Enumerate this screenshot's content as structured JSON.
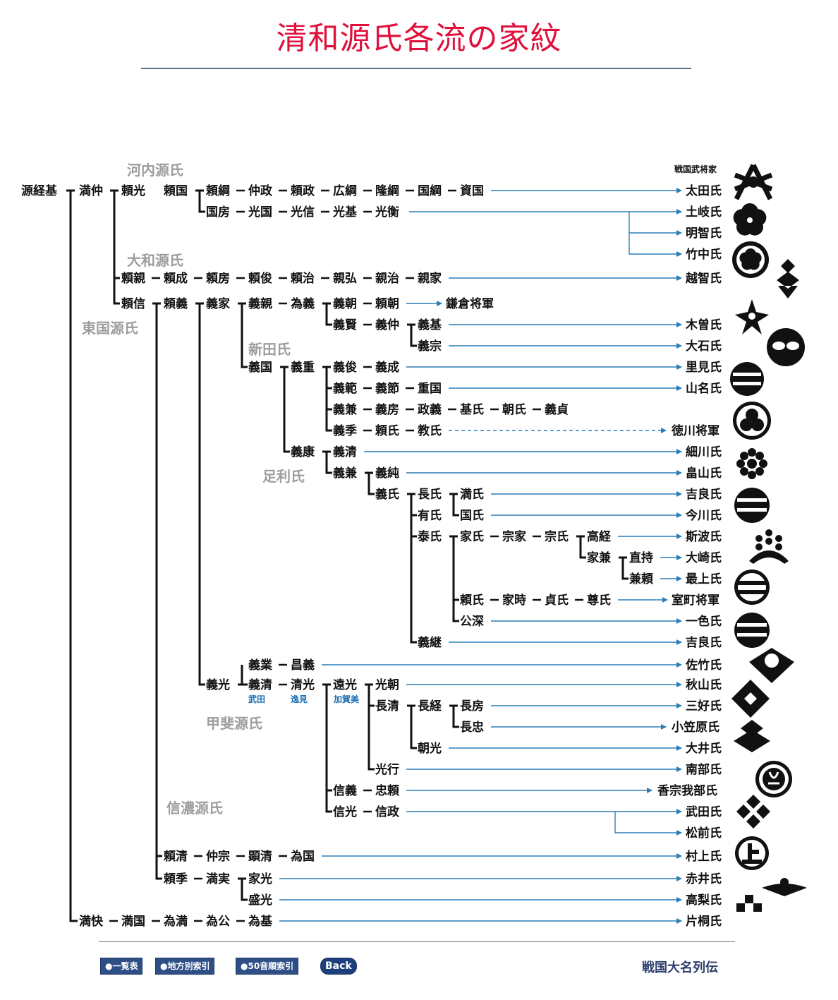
{
  "page": {
    "title": "清和源氏各流の家紋"
  },
  "header": {
    "daimyo_column": "戦国武将家"
  },
  "groups": {
    "kawachi": "河内源氏",
    "yamato": "大和源氏",
    "togoku": "東国源氏",
    "nitta": "新田氏",
    "ashikaga": "足利氏",
    "kai": "甲斐源氏",
    "shinano": "信濃源氏"
  },
  "subs": {
    "takeda": "武田",
    "henmi": "逸見",
    "kagami": "加賀美"
  },
  "names": {
    "mitsumoto": "源経基",
    "mitsunaka": "満仲",
    "yorimitsu": "頼光",
    "yorikuni": "頼国",
    "yoritsuna": "頼綱",
    "nakamasa": "仲政",
    "yorimasa": "頼政",
    "hirotsuna": "広綱",
    "takatsuna": "隆綱",
    "kunitsuna": "国綱",
    "suekuni": "資国",
    "kunifusa": "国房",
    "mitsukuni": "光国",
    "mitsunobu": "光信",
    "mitsumoto2": "光基",
    "mitsuhira": "光衡",
    "yorichika": "頼親",
    "yorinari": "頼成",
    "yorifusa": "頼房",
    "yoritoshi": "頼俊",
    "yoriharu": "頼治",
    "chikahiro": "親弘",
    "chikaharu": "親治",
    "chikaie": "親家",
    "yorinobu": "頼信",
    "yoriyoshi": "頼義",
    "yoshiie": "義家",
    "yoshichika": "義親",
    "tameyoshi": "為義",
    "yoshitomo": "義朝",
    "yoritomo": "頼朝",
    "yoshikata": "義賢",
    "yoshinaka": "義仲",
    "yoshimoto": "義基",
    "yoshimune": "義宗",
    "yoshikuni": "義国",
    "yoshishige": "義重",
    "yoshitoshi": "義俊",
    "yoshinari": "義成",
    "yoshinori": "義範",
    "yoshitoki": "義節",
    "shigekuni": "重国",
    "yoshikane": "義兼",
    "yoshifusa": "義房",
    "masayoshi": "政義",
    "motouji": "基氏",
    "tomouji": "朝氏",
    "yoshisada": "義貞",
    "yoshisue": "義季",
    "yoriuji": "頼氏",
    "noriuji": "教氏",
    "yoshiyasu": "義康",
    "yoshikiyo_a": "義清",
    "yoshikane2": "義兼",
    "yoshizumi": "義純",
    "yoshiuji": "義氏",
    "osauji": "長氏",
    "mitsuuji": "満氏",
    "ariuji": "有氏",
    "kuniuji": "国氏",
    "yasuuji": "泰氏",
    "ieuji": "家氏",
    "muneie": "宗家",
    "muneuji": "宗氏",
    "takatsune": "高経",
    "iekane": "家兼",
    "tadamochi": "直持",
    "kaneyori": "兼頼",
    "yoriuji2": "頼氏",
    "ietoki": "家時",
    "sadauji": "貞氏",
    "takauji": "尊氏",
    "kofuka": "公深",
    "yoshitsugu": "義継",
    "yoshinari2": "義業",
    "masayoshi2": "昌義",
    "yoshimitsu": "義光",
    "yoshikiyo": "義清",
    "kiyomitsu": "清光",
    "toomitsu": "遠光",
    "mitsutomo": "光朝",
    "nagakiyo": "長清",
    "nagatsune": "長経",
    "nagafusa": "長房",
    "nagatada": "長忠",
    "tomomitsu": "朝光",
    "mitsuyuki": "光行",
    "nobuyoshi": "信義",
    "tadayori": "忠頼",
    "nobumitsu": "信光",
    "nobumasa": "信政",
    "yorikiyo": "頼清",
    "nakamune": "仲宗",
    "akikiyo": "顕清",
    "tamekuni": "為国",
    "yorisue": "頼季",
    "mitsuzane": "満実",
    "iemitsu": "家光",
    "morimitsu": "盛光",
    "mitsumasa": "満快",
    "mitsukuni2": "満国",
    "tamemitsu": "為満",
    "tamekimi": "為公",
    "tamemoto": "為基"
  },
  "targets": {
    "kamakura": "鎌倉将軍",
    "tokugawa": "徳川将軍",
    "muromachi": "室町将軍",
    "ota": "太田氏",
    "toki": "土岐氏",
    "akechi": "明智氏",
    "takenaka": "竹中氏",
    "ochi": "越智氏",
    "kiso": "木曽氏",
    "oishi": "大石氏",
    "satomi": "里見氏",
    "yamana": "山名氏",
    "hosokawa": "細川氏",
    "hatakeyama": "畠山氏",
    "kira1": "吉良氏",
    "imagawa": "今川氏",
    "shiba": "斯波氏",
    "osaki": "大崎氏",
    "mogami": "最上氏",
    "isshiki": "一色氏",
    "kira2": "吉良氏",
    "satake": "佐竹氏",
    "akiyama": "秋山氏",
    "miyoshi": "三好氏",
    "ogasawara": "小笠原氏",
    "oi": "大井氏",
    "nanbu": "南部氏",
    "kosokabe": "香宗我部氏",
    "takeda": "武田氏",
    "matsumae": "松前氏",
    "murakami": "村上氏",
    "akai": "赤井氏",
    "takanashi": "高梨氏",
    "katagiri": "片桐氏"
  },
  "crests": [
    "bamboo-sparrow-crest",
    "kikyo-crest",
    "kikyo-crest",
    "hanabishi-crest",
    "omodaka-crest",
    "bamboo-crest",
    "circle-crest",
    "hikiryo-crest",
    "mitsuba-aoi-crest",
    "kuyo-crest",
    "hikiryo-crest",
    "kiri-crest",
    "nibiki-crest",
    "hikiryo-crest",
    "fan-crest",
    "hanabishi-crest",
    "kaibishi-crest",
    "crane-crest",
    "takeda-bishi-crest",
    "ue-crest",
    "ichimonji-crest",
    "checker-crest"
  ],
  "footer": {
    "btn_list": "●一覧表",
    "btn_region": "●地方別索引",
    "btn_50": "●50音順索引",
    "btn_back": "Back",
    "series": "戦国大名列伝"
  },
  "colors": {
    "title": "#e0103c",
    "arrow": "#2a7fb8",
    "group": "#9d9d9d",
    "sub": "#1b6fb3"
  }
}
